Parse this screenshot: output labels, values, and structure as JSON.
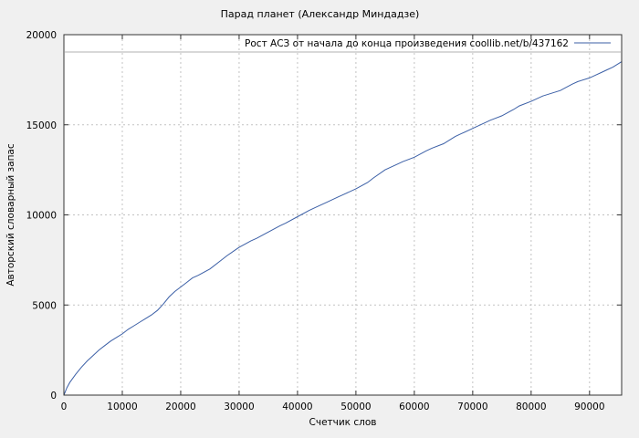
{
  "chart": {
    "title": "Парад планет (Александр Миндадзе)",
    "xlabel": "Счетчик слов",
    "ylabel": "Авторский словарный запас",
    "legend": "Рост АСЗ от начала до конца произведения  coollib.net/b/437162"
  },
  "colors": {
    "background": "#f0f0f0",
    "plot_background": "#ffffff",
    "grid": "#c2c2c2",
    "frame": "#333333",
    "line": "#3b5fa6",
    "legend_separator": "#999999",
    "text": "#000000"
  },
  "chart_data": {
    "type": "line",
    "title": "Парад планет (Александр Миндадзе)",
    "xlabel": "Счетчик слов",
    "ylabel": "Авторский словарный запас",
    "legend": "Рост АСЗ от начала до конца произведения  coollib.net/b/437162",
    "legend_position": "top-right-inside",
    "grid": true,
    "grid_style": "dashed",
    "xlim": [
      0,
      95500
    ],
    "ylim": [
      0,
      20000
    ],
    "xticks": [
      0,
      10000,
      20000,
      30000,
      40000,
      50000,
      60000,
      70000,
      80000,
      90000
    ],
    "yticks": [
      0,
      5000,
      10000,
      15000,
      20000
    ],
    "line_color": "#3b5fa6",
    "series": [
      {
        "name": "Рост АСЗ от начала до конца произведения  coollib.net/b/437162",
        "points": [
          [
            0,
            0
          ],
          [
            500,
            400
          ],
          [
            1000,
            700
          ],
          [
            2000,
            1150
          ],
          [
            3000,
            1550
          ],
          [
            4000,
            1900
          ],
          [
            5000,
            2200
          ],
          [
            6000,
            2500
          ],
          [
            7000,
            2750
          ],
          [
            8000,
            3000
          ],
          [
            9000,
            3200
          ],
          [
            10000,
            3400
          ],
          [
            11000,
            3650
          ],
          [
            12000,
            3850
          ],
          [
            13000,
            4050
          ],
          [
            14000,
            4250
          ],
          [
            15000,
            4450
          ],
          [
            16000,
            4700
          ],
          [
            17000,
            5050
          ],
          [
            18000,
            5450
          ],
          [
            19000,
            5750
          ],
          [
            20000,
            6000
          ],
          [
            21000,
            6250
          ],
          [
            22000,
            6500
          ],
          [
            23000,
            6650
          ],
          [
            25000,
            7000
          ],
          [
            27000,
            7500
          ],
          [
            28000,
            7750
          ],
          [
            30000,
            8200
          ],
          [
            32000,
            8550
          ],
          [
            33000,
            8700
          ],
          [
            35000,
            9050
          ],
          [
            37000,
            9400
          ],
          [
            38000,
            9550
          ],
          [
            40000,
            9900
          ],
          [
            42000,
            10250
          ],
          [
            43000,
            10400
          ],
          [
            45000,
            10700
          ],
          [
            47000,
            11000
          ],
          [
            48000,
            11150
          ],
          [
            50000,
            11450
          ],
          [
            52000,
            11800
          ],
          [
            53000,
            12050
          ],
          [
            55000,
            12500
          ],
          [
            57000,
            12800
          ],
          [
            58000,
            12950
          ],
          [
            60000,
            13200
          ],
          [
            62000,
            13550
          ],
          [
            63000,
            13700
          ],
          [
            65000,
            13950
          ],
          [
            67000,
            14350
          ],
          [
            68000,
            14500
          ],
          [
            70000,
            14800
          ],
          [
            72000,
            15100
          ],
          [
            73000,
            15250
          ],
          [
            75000,
            15500
          ],
          [
            77000,
            15850
          ],
          [
            78000,
            16050
          ],
          [
            80000,
            16300
          ],
          [
            82000,
            16600
          ],
          [
            83000,
            16700
          ],
          [
            85000,
            16900
          ],
          [
            87000,
            17250
          ],
          [
            88000,
            17400
          ],
          [
            90000,
            17600
          ],
          [
            91000,
            17750
          ],
          [
            92000,
            17900
          ],
          [
            93000,
            18050
          ],
          [
            94000,
            18200
          ],
          [
            95000,
            18400
          ],
          [
            95500,
            18500
          ]
        ]
      }
    ]
  }
}
